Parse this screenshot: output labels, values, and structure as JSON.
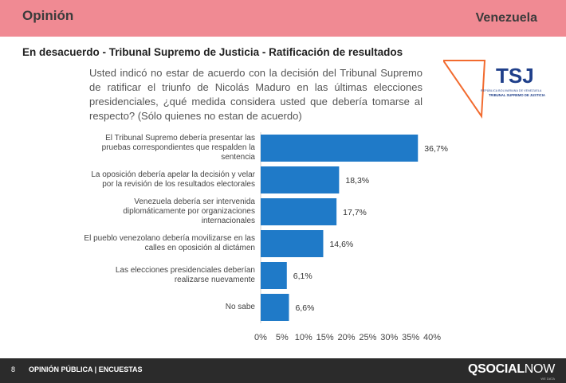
{
  "header": {
    "left": "Opinión",
    "right": "Venezuela"
  },
  "section_title": "En desacuerdo - Tribunal Supremo de Justicia - Ratificación de resultados",
  "question": "Usted indicó no estar de acuerdo con la decisión del Tribunal Supremo de ratificar el triunfo de Nicolás Maduro en las últimas elecciones presidenciales, ¿qué medida considera usted que debería tomarse al respecto? (Sólo quienes no estan de acuerdo)",
  "logo": {
    "line1": "REPÚBLICA BOLIVARIANA DE VENEZUELA",
    "line2": "TRIBUNAL SUPREMO DE JUSTICIA",
    "colors": {
      "orange": "#f26b2f",
      "blue": "#1f3f8a"
    }
  },
  "chart_data": {
    "type": "bar",
    "orientation": "horizontal",
    "categories": [
      "El Tribunal Supremo debería presentar las pruebas correspondientes que respalden la sentencia",
      "La oposición debería apelar la decisión y velar por la revisión de los resultados electorales",
      "Venezuela debería ser intervenida diplomáticamente por organizaciones internacionales",
      "El pueblo venezolano debería movilizarse en las calles en oposición al dictámen",
      "Las elecciones presidenciales deberían realizarse nuevamente",
      "No sabe"
    ],
    "values": [
      36.7,
      18.3,
      17.7,
      14.6,
      6.1,
      6.6
    ],
    "value_labels": [
      "36,7%",
      "18,3%",
      "17,7%",
      "14,6%",
      "6,1%",
      "6,6%"
    ],
    "xlim": [
      0,
      40
    ],
    "ticks": [
      0,
      5,
      10,
      15,
      20,
      25,
      30,
      35,
      40
    ],
    "tick_labels": [
      "0%",
      "5%",
      "10%",
      "15%",
      "20%",
      "25%",
      "30%",
      "35%",
      "40%"
    ],
    "bar_color": "#1f7ac8",
    "grid": false
  },
  "footer": {
    "page": "8",
    "text": "OPINIÓN PÚBLICA | ENCUESTAS",
    "brand_bold": "QSOCIAL",
    "brand_thin": "NOW",
    "brand_sub": "WE DATA"
  }
}
